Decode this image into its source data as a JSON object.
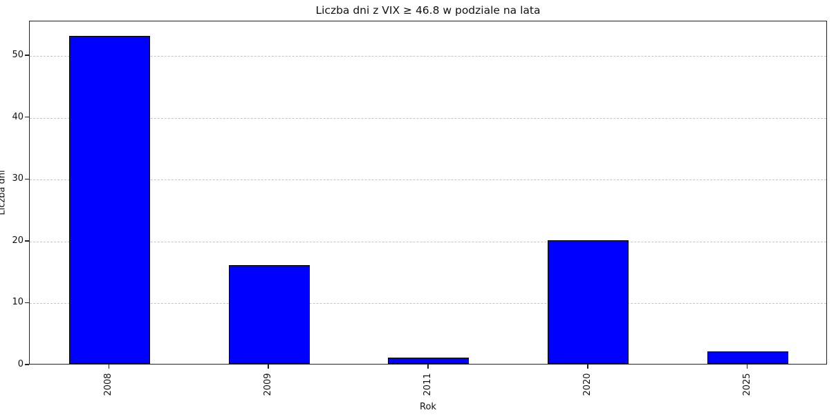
{
  "chart_data": {
    "type": "bar",
    "title": "Liczba dni z VIX ≥ 46.8 w podziale na lata",
    "xlabel": "Rok",
    "ylabel": "Liczba dni",
    "categories": [
      "2008",
      "2009",
      "2011",
      "2020",
      "2025"
    ],
    "values": [
      53,
      16,
      1,
      20,
      2
    ],
    "yticks": [
      0,
      10,
      20,
      30,
      40,
      50
    ],
    "ylim": [
      0,
      55.6
    ],
    "bar_color": "#0000ff",
    "bar_edge_color": "#000000",
    "grid": "horizontal-dashed",
    "grid_color": "#c3c3c3",
    "xtick_label_rotation_deg": 90,
    "legend_position": "none",
    "background_color": "#ffffff"
  }
}
